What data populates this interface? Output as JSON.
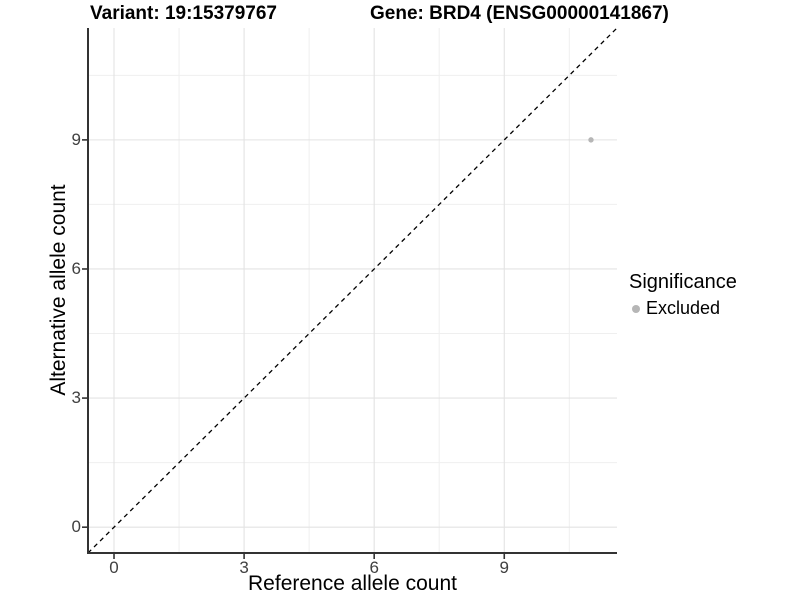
{
  "chart_data": {
    "type": "scatter",
    "titles": {
      "left": "Variant: 19:15379767",
      "right": "Gene: BRD4 (ENSG00000141867)"
    },
    "xlabel": "Reference allele count",
    "ylabel": "Alternative allele count",
    "xlim": [
      -0.6,
      11.6
    ],
    "ylim": [
      -0.6,
      11.6
    ],
    "x_ticks": [
      0,
      3,
      6,
      9
    ],
    "y_ticks": [
      0,
      3,
      6,
      9
    ],
    "minor_breaks": [
      1.5,
      4.5,
      7.5,
      10.5
    ],
    "grid": "major+minor",
    "series": [
      {
        "name": "Excluded",
        "color": "#b6b6b6",
        "points": [
          {
            "x": 11,
            "y": 9
          }
        ]
      }
    ],
    "reference_line": {
      "slope": 1,
      "intercept": 0,
      "style": "dashed",
      "color": "#000000"
    },
    "legend": {
      "position": "right",
      "title": "Significance",
      "items": [
        {
          "label": "Excluded",
          "color": "#b6b6b6"
        }
      ]
    },
    "style": {
      "background": "#ffffff",
      "grid_major_color": "#e3e3e3",
      "grid_minor_color": "#efefef",
      "axis_line_color": "#333333",
      "tick_mark_color": "#333333",
      "tick_label_color": "#404040"
    }
  }
}
